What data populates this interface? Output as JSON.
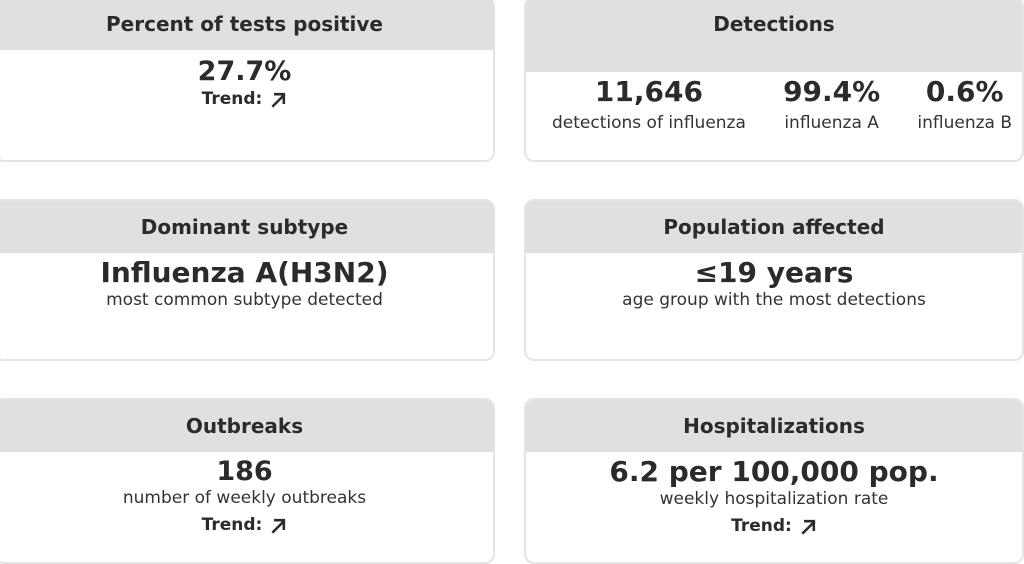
{
  "cards": {
    "percent_positive": {
      "title": "Percent of tests positive",
      "value": "27.7%",
      "trend_label": "Trend:",
      "trend_icon": "arrow-up-right-icon"
    },
    "detections": {
      "title": "Detections",
      "items": [
        {
          "value": "11,646",
          "label": "detections of influenza"
        },
        {
          "value": "99.4%",
          "label": "influenza A"
        },
        {
          "value": "0.6%",
          "label": "influenza B"
        }
      ]
    },
    "dominant_subtype": {
      "title": "Dominant subtype",
      "value": "Influenza A(H3N2)",
      "label": "most common subtype detected"
    },
    "population_affected": {
      "title": "Population affected",
      "value": "≤19 years",
      "label": "age group with the most detections"
    },
    "outbreaks": {
      "title": "Outbreaks",
      "value": "186",
      "label": "number of weekly outbreaks",
      "trend_label": "Trend:",
      "trend_icon": "arrow-up-right-icon"
    },
    "hospitalizations": {
      "title": "Hospitalizations",
      "value": "6.2 per 100,000 pop.",
      "label": "weekly hospitalization rate",
      "trend_label": "Trend:",
      "trend_icon": "arrow-up-right-icon"
    }
  },
  "colors": {
    "header_bg": "#e0e0e0",
    "card_border": "#e4e4e4",
    "text": "#2b2b2b"
  }
}
